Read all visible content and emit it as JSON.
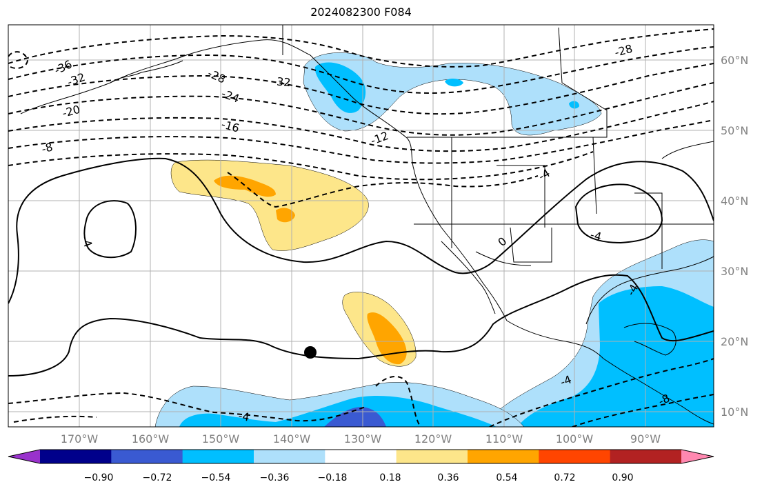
{
  "title": "2024082300 F084",
  "lat_labels": [
    "60°N",
    "50°N",
    "40°N",
    "30°N",
    "20°N",
    "10°N"
  ],
  "lon_labels": [
    "170°W",
    "160°W",
    "150°W",
    "140°W",
    "130°W",
    "120°W",
    "110°W",
    "100°W",
    "90°W"
  ],
  "colorbar": {
    "ticks": [
      "−0.90",
      "−0.72",
      "−0.54",
      "−0.36",
      "−0.18",
      "0.18",
      "0.36",
      "0.54",
      "0.72",
      "0.90"
    ],
    "colors": [
      "#9932cc",
      "#00008b",
      "#3a5ad2",
      "#00bfff",
      "#aee0fb",
      "#ffffff",
      "#fde68a",
      "#ffa500",
      "#ff4500",
      "#b22222",
      "#ff88b0"
    ]
  },
  "contour_labels": [
    "-36",
    "-32",
    "-28",
    "-24",
    "-20",
    "-16",
    "-12",
    "-8",
    "-4",
    "0",
    "-4",
    "-32",
    "-4",
    "-4",
    "-4",
    "-4",
    "-8",
    "-28"
  ],
  "colors": {
    "light_blue": "#aee0fb",
    "blue": "#00bfff",
    "mid_blue": "#3a5ad2",
    "yellow": "#fde68a",
    "orange": "#ffa500",
    "grid": "#b0b0b0",
    "label_grey": "#808080"
  }
}
